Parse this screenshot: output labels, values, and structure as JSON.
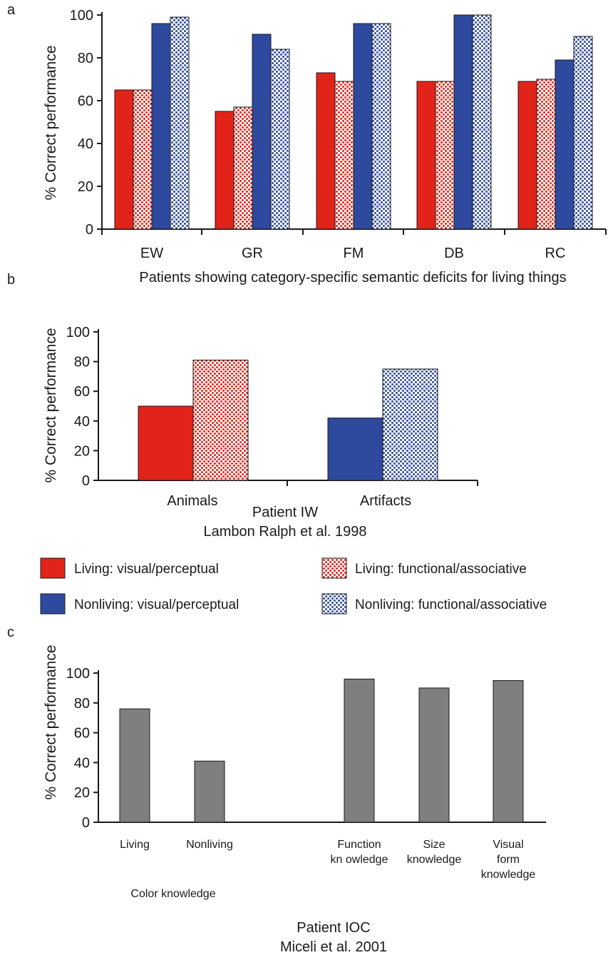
{
  "colors": {
    "living_visual": "#e2231a",
    "nonliving_visual": "#2e4a9e",
    "gray_bar": "#7f7f7f",
    "axis": "#1a1a1a"
  },
  "chart_data": [
    {
      "panel": "a",
      "type": "bar",
      "ylabel": "% Correct performance",
      "xlabel": "Patients showing category-specific semantic deficits for living things",
      "ylim": [
        0,
        100
      ],
      "yticks": [
        0,
        20,
        40,
        60,
        80,
        100
      ],
      "categories": [
        "EW",
        "GR",
        "FM",
        "DB",
        "RC"
      ],
      "series": [
        {
          "name": "Living: visual/perceptual",
          "values": [
            65,
            55,
            73,
            69,
            69
          ]
        },
        {
          "name": "Living: functional/associative",
          "values": [
            65,
            57,
            69,
            69,
            70
          ]
        },
        {
          "name": "Nonliving: visual/perceptual",
          "values": [
            96,
            91,
            96,
            100,
            79
          ]
        },
        {
          "name": "Nonliving: functional/associative",
          "values": [
            99,
            84,
            96,
            100,
            90
          ]
        }
      ]
    },
    {
      "panel": "b",
      "type": "bar",
      "ylabel": "% Correct performance",
      "ylim": [
        0,
        100
      ],
      "yticks": [
        0,
        20,
        40,
        60,
        80,
        100
      ],
      "categories": [
        "Animals",
        "Artifacts"
      ],
      "title_lines": [
        "Patient IW",
        "Lambon Ralph et al. 1998"
      ],
      "series": [
        {
          "name": "Living: visual/perceptual",
          "values": [
            50,
            null
          ]
        },
        {
          "name": "Living: functional/associative",
          "values": [
            81,
            null
          ]
        },
        {
          "name": "Nonliving: visual/perceptual",
          "values": [
            null,
            42
          ]
        },
        {
          "name": "Nonliving: functional/associative",
          "values": [
            null,
            75
          ]
        }
      ],
      "legend": {
        "placement": "below",
        "entries": [
          {
            "label": "Living: visual/perceptual",
            "swatch": "living-solid"
          },
          {
            "label": "Living: functional/associative",
            "swatch": "living-pattern"
          },
          {
            "label": "Nonliving: visual/perceptual",
            "swatch": "nonliving-solid"
          },
          {
            "label": "Nonliving: functional/associative",
            "swatch": "nonliving-pattern"
          }
        ]
      }
    },
    {
      "panel": "c",
      "type": "bar",
      "ylabel": "% Correct performance",
      "ylim": [
        0,
        100
      ],
      "yticks": [
        0,
        20,
        40,
        60,
        80,
        100
      ],
      "categories": [
        [
          "Living"
        ],
        [
          "Nonliving"
        ],
        [
          "Function",
          "kn owledge"
        ],
        [
          "Size",
          "knowledge"
        ],
        [
          "Visual",
          "form",
          "knowledge"
        ]
      ],
      "group_label": "Color knowledge",
      "values": [
        76,
        41,
        96,
        90,
        95
      ],
      "title_lines": [
        "Patient IOC",
        "Miceli et al. 2001"
      ]
    }
  ],
  "panel_letters": [
    "a",
    "b",
    "c"
  ]
}
